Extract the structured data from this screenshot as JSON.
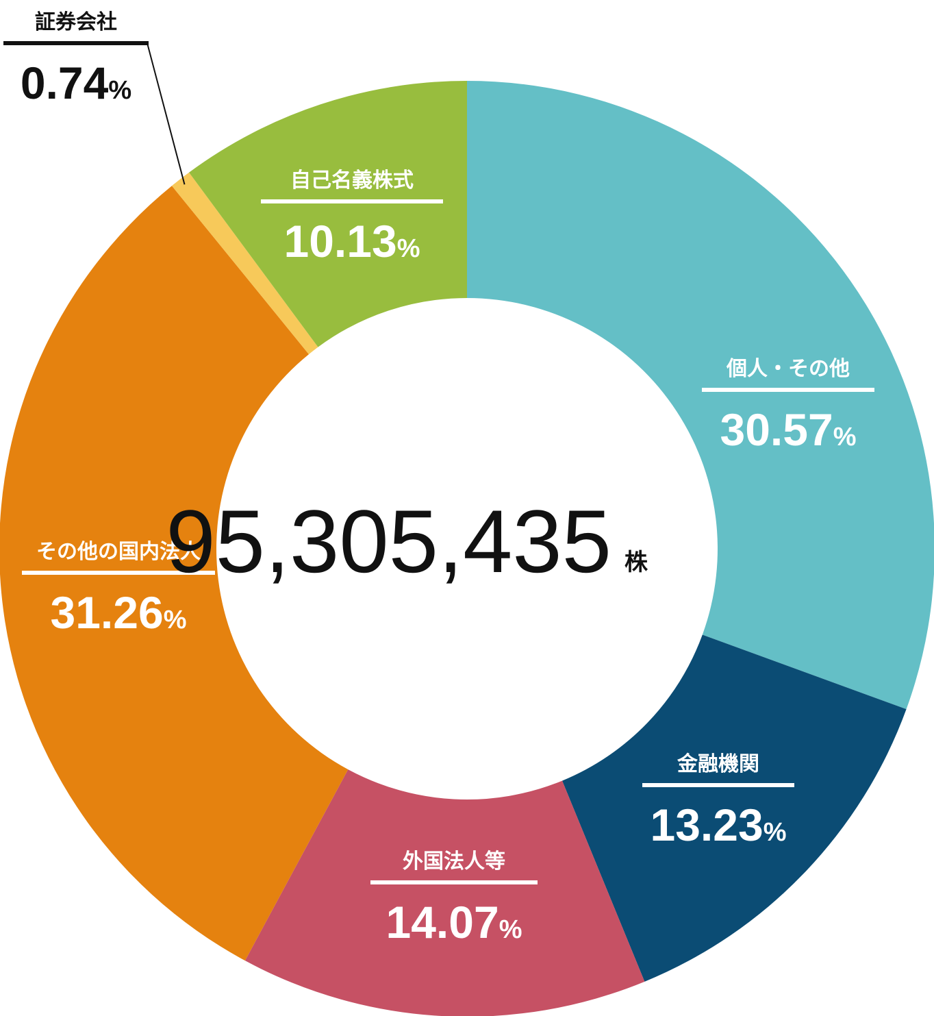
{
  "chart_data": {
    "type": "pie",
    "center_total": "95,305,435",
    "center_unit": "株",
    "percent_sign": "%",
    "slices": [
      {
        "label": "個人・その他",
        "value": 30.57,
        "value_text": "30.57",
        "color": "#64bfc6",
        "text_color": "#ffffff"
      },
      {
        "label": "金融機関",
        "value": 13.23,
        "value_text": "13.23",
        "color": "#0b4c74",
        "text_color": "#ffffff"
      },
      {
        "label": "外国法人等",
        "value": 14.07,
        "value_text": "14.07",
        "color": "#c65164",
        "text_color": "#ffffff"
      },
      {
        "label": "その他の国内法人",
        "value": 31.26,
        "value_text": "31.26",
        "color": "#e5820f",
        "text_color": "#ffffff"
      },
      {
        "label": "証券会社",
        "value": 0.74,
        "value_text": "0.74",
        "color": "#f7c95a",
        "text_color": "#111111"
      },
      {
        "label": "自己名義株式",
        "value": 10.13,
        "value_text": "10.13",
        "color": "#98bd3e",
        "text_color": "#ffffff"
      }
    ]
  }
}
